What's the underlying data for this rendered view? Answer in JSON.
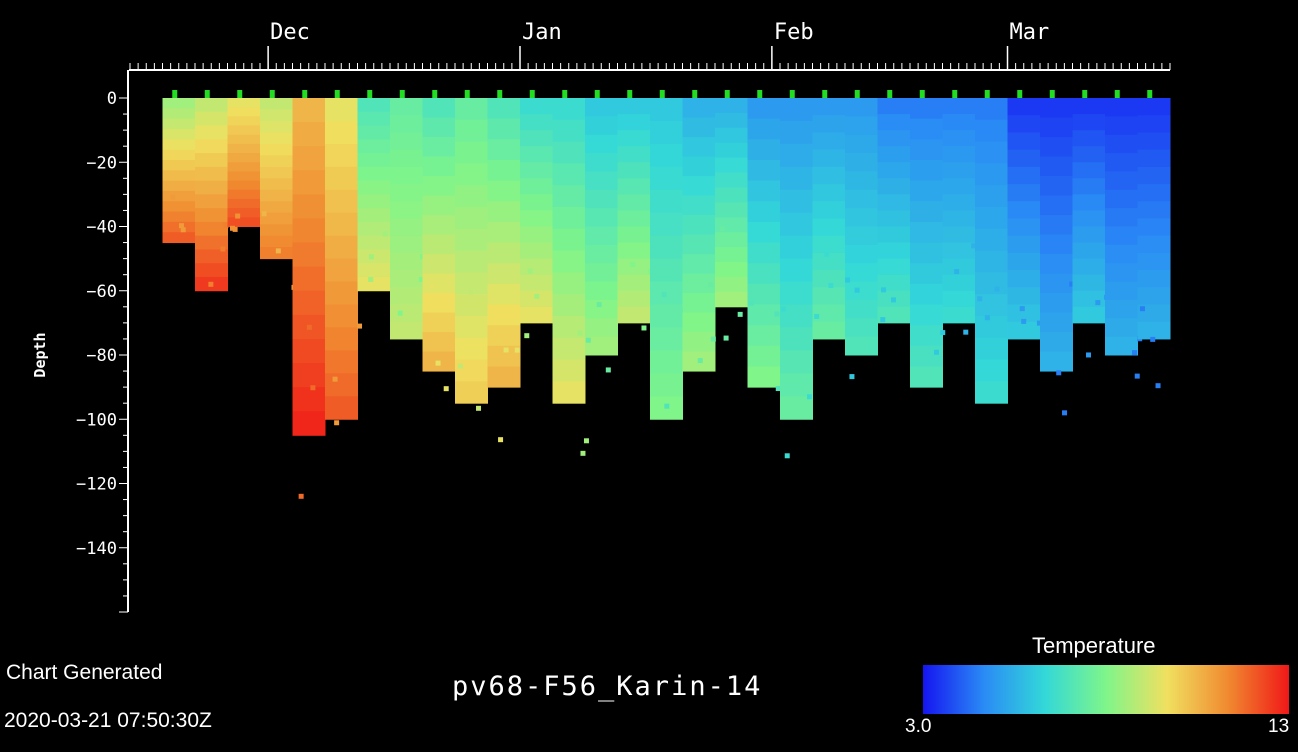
{
  "chart_data": {
    "type": "heatmap",
    "title": "pv68-F56_Karin-14",
    "ylabel": "Depth",
    "xlabel": "",
    "x_tick_labels": [
      {
        "label": "Dec",
        "date": "2019-12-01"
      },
      {
        "label": "Jan",
        "date": "2020-01-01"
      },
      {
        "label": "Feb",
        "date": "2020-02-01"
      },
      {
        "label": "Mar",
        "date": "2020-03-01"
      }
    ],
    "xlim": [
      "2019-11-14",
      "2020-03-21"
    ],
    "y_ticks": [
      0,
      -20,
      -40,
      -60,
      -80,
      -100,
      -120,
      -140
    ],
    "ylim": [
      -160,
      0
    ],
    "colorbar": {
      "label": "Temperature",
      "min": 3.0,
      "max": 13,
      "min_label": "3.0",
      "max_label": "13",
      "colors": [
        "#1515f0",
        "#2a8bf5",
        "#33d8d8",
        "#7ff58a",
        "#f0e060",
        "#f08a30",
        "#f01818"
      ]
    },
    "profiles": [
      {
        "date": "2019-11-18",
        "depth": 45,
        "surface_temp": 8.5,
        "bottom_temp": 12.0
      },
      {
        "date": "2019-11-22",
        "depth": 60,
        "surface_temp": 9.0,
        "bottom_temp": 12.5
      },
      {
        "date": "2019-11-26",
        "depth": 40,
        "surface_temp": 9.5,
        "bottom_temp": 12.2
      },
      {
        "date": "2019-11-30",
        "depth": 50,
        "surface_temp": 9.0,
        "bottom_temp": 11.5
      },
      {
        "date": "2019-12-04",
        "depth": 105,
        "surface_temp": 10.5,
        "bottom_temp": 12.8
      },
      {
        "date": "2019-12-08",
        "depth": 100,
        "surface_temp": 9.5,
        "bottom_temp": 12.0
      },
      {
        "date": "2019-12-12",
        "depth": 60,
        "surface_temp": 7.0,
        "bottom_temp": 9.5
      },
      {
        "date": "2019-12-16",
        "depth": 75,
        "surface_temp": 7.5,
        "bottom_temp": 9.0
      },
      {
        "date": "2019-12-20",
        "depth": 85,
        "surface_temp": 7.0,
        "bottom_temp": 10.5
      },
      {
        "date": "2019-12-24",
        "depth": 95,
        "surface_temp": 7.5,
        "bottom_temp": 10.0
      },
      {
        "date": "2019-12-28",
        "depth": 90,
        "surface_temp": 7.0,
        "bottom_temp": 10.5
      },
      {
        "date": "2020-01-01",
        "depth": 70,
        "surface_temp": 6.5,
        "bottom_temp": 9.5
      },
      {
        "date": "2020-01-05",
        "depth": 95,
        "surface_temp": 6.5,
        "bottom_temp": 9.5
      },
      {
        "date": "2020-01-09",
        "depth": 80,
        "surface_temp": 6.0,
        "bottom_temp": 8.5
      },
      {
        "date": "2020-01-13",
        "depth": 70,
        "surface_temp": 6.0,
        "bottom_temp": 9.0
      },
      {
        "date": "2020-01-17",
        "depth": 100,
        "surface_temp": 6.0,
        "bottom_temp": 8.0
      },
      {
        "date": "2020-01-21",
        "depth": 85,
        "surface_temp": 5.5,
        "bottom_temp": 8.5
      },
      {
        "date": "2020-01-25",
        "depth": 65,
        "surface_temp": 5.5,
        "bottom_temp": 8.5
      },
      {
        "date": "2020-01-29",
        "depth": 90,
        "surface_temp": 5.0,
        "bottom_temp": 8.0
      },
      {
        "date": "2020-02-02",
        "depth": 100,
        "surface_temp": 5.0,
        "bottom_temp": 7.5
      },
      {
        "date": "2020-02-06",
        "depth": 75,
        "surface_temp": 5.0,
        "bottom_temp": 7.5
      },
      {
        "date": "2020-02-10",
        "depth": 80,
        "surface_temp": 5.0,
        "bottom_temp": 7.0
      },
      {
        "date": "2020-02-14",
        "depth": 70,
        "surface_temp": 4.5,
        "bottom_temp": 7.0
      },
      {
        "date": "2020-02-18",
        "depth": 90,
        "surface_temp": 4.5,
        "bottom_temp": 7.0
      },
      {
        "date": "2020-02-22",
        "depth": 70,
        "surface_temp": 4.5,
        "bottom_temp": 6.5
      },
      {
        "date": "2020-02-26",
        "depth": 95,
        "surface_temp": 4.5,
        "bottom_temp": 6.5
      },
      {
        "date": "2020-03-01",
        "depth": 75,
        "surface_temp": 3.5,
        "bottom_temp": 6.0
      },
      {
        "date": "2020-03-05",
        "depth": 85,
        "surface_temp": 3.5,
        "bottom_temp": 5.5
      },
      {
        "date": "2020-03-09",
        "depth": 70,
        "surface_temp": 3.5,
        "bottom_temp": 6.0
      },
      {
        "date": "2020-03-13",
        "depth": 80,
        "surface_temp": 3.5,
        "bottom_temp": 5.5
      },
      {
        "date": "2020-03-17",
        "depth": 75,
        "surface_temp": 3.5,
        "bottom_temp": 5.5
      }
    ]
  },
  "footer": {
    "chart_generated_label": "Chart Generated",
    "chart_generated_time": "2020-03-21 07:50:30Z"
  }
}
